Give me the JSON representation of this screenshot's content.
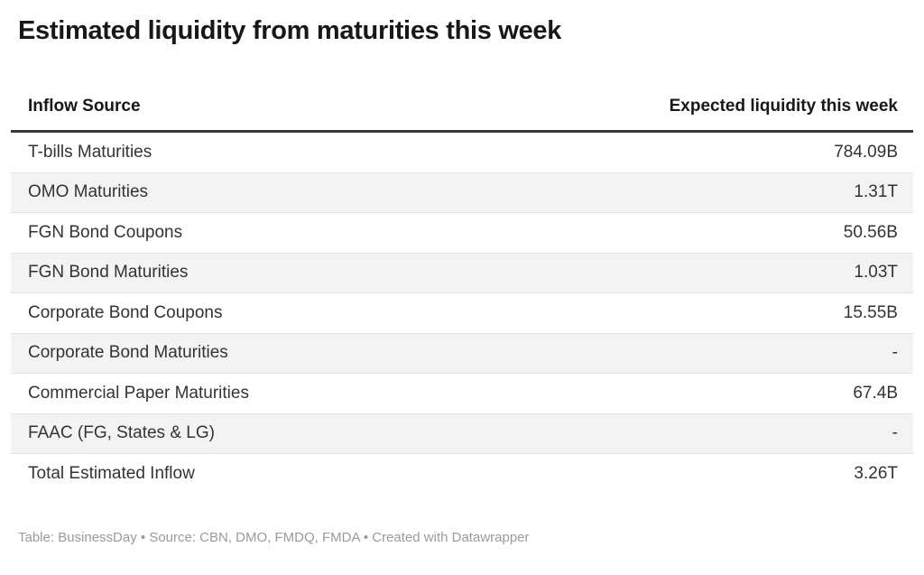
{
  "title": "Estimated liquidity from maturities this week",
  "table": {
    "columns": [
      "Inflow Source",
      "Expected liquidity this week"
    ],
    "rows": [
      {
        "source": "T-bills Maturities",
        "value": "784.09B"
      },
      {
        "source": "OMO Maturities",
        "value": "1.31T"
      },
      {
        "source": "FGN Bond Coupons",
        "value": "50.56B"
      },
      {
        "source": "FGN Bond Maturities",
        "value": "1.03T"
      },
      {
        "source": "Corporate Bond Coupons",
        "value": "15.55B"
      },
      {
        "source": "Corporate Bond Maturities",
        "value": "-"
      },
      {
        "source": "Commercial Paper Maturities",
        "value": "67.4B"
      },
      {
        "source": "FAAC (FG, States & LG)",
        "value": "-"
      },
      {
        "source": "Total Estimated Inflow",
        "value": "3.26T"
      }
    ]
  },
  "footer": "Table: BusinessDay • Source: CBN, DMO, FMDQ, FMDA • Created with Datawrapper",
  "colors": {
    "title_text": "#18181a",
    "body_text": "#333333",
    "header_border": "#393939",
    "row_stripe": "#f3f3f3",
    "row_divider": "#e4e4e4",
    "footer_text": "#9b9b9b",
    "background": "#ffffff"
  },
  "chart_data": {
    "type": "table",
    "title": "Estimated liquidity from maturities this week",
    "columns": [
      "Inflow Source",
      "Expected liquidity this week"
    ],
    "rows": [
      [
        "T-bills Maturities",
        "784.09B"
      ],
      [
        "OMO Maturities",
        "1.31T"
      ],
      [
        "FGN Bond Coupons",
        "50.56B"
      ],
      [
        "FGN Bond Maturities",
        "1.03T"
      ],
      [
        "Corporate Bond Coupons",
        "15.55B"
      ],
      [
        "Corporate Bond Maturities",
        "-"
      ],
      [
        "Commercial Paper Maturities",
        "67.4B"
      ],
      [
        "FAAC (FG, States & LG)",
        "-"
      ],
      [
        "Total Estimated Inflow",
        "3.26T"
      ]
    ],
    "notes": "Alternating shaded rows; values right-aligned; '-' indicates no inflow",
    "source_line": "Table: BusinessDay • Source: CBN, DMO, FMDQ, FMDA • Created with Datawrapper"
  }
}
